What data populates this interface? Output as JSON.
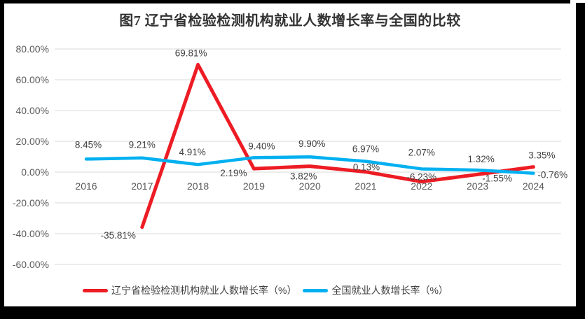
{
  "title": "图7  辽宁省检验检测机构就业人数增长率与全国的比较",
  "colors": {
    "frame": "#000000",
    "background": "#FFFFFF",
    "gridline": "#D9D9D9",
    "axis_label": "#595959",
    "data_label": "#3F3F3F",
    "liaoning_red": "#ED1C24",
    "national_blue": "#00B0F0"
  },
  "chart_data": {
    "type": "line",
    "title": "图7  辽宁省检验检测机构就业人数增长率与全国的比较",
    "categories": [
      "2016",
      "2017",
      "2018",
      "2019",
      "2020",
      "2021",
      "2022",
      "2023",
      "2024"
    ],
    "series": [
      {
        "name": "辽宁省检验检测机构就业人数增长率（%）",
        "color": "#ED1C24",
        "values": [
          null,
          -35.81,
          69.81,
          2.19,
          3.82,
          0.13,
          -6.23,
          -1.55,
          3.35
        ]
      },
      {
        "name": "全国就业人数增长率（%）",
        "color": "#00B0F0",
        "values": [
          8.45,
          9.21,
          4.91,
          9.4,
          9.9,
          6.97,
          2.07,
          1.32,
          -0.76
        ]
      }
    ],
    "ylim": [
      -60,
      80
    ],
    "ytick_step": 20,
    "ytick_labels": [
      "80.00%",
      "60.00%",
      "40.00%",
      "20.00%",
      "0.00%",
      "-20.00%",
      "-40.00%",
      "-60.00%"
    ],
    "xlabel": "",
    "ylabel": "",
    "grid": true,
    "data_labels": true,
    "legend_position": "bottom"
  }
}
